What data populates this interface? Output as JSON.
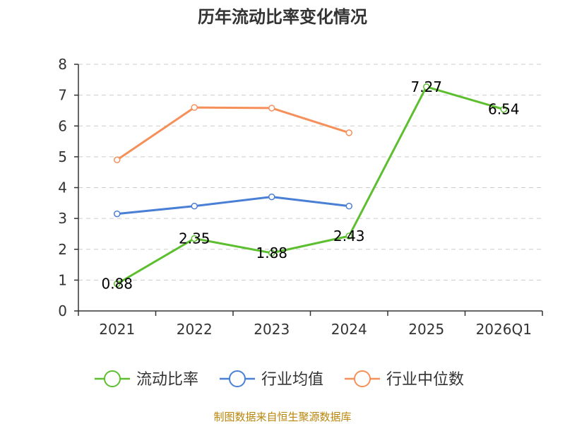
{
  "chart_data": {
    "type": "line",
    "title": "历年流动比率变化情况",
    "categories": [
      "2021",
      "2022",
      "2023",
      "2024",
      "2025",
      "2026Q1"
    ],
    "ylim": [
      0,
      8
    ],
    "yticks": [
      0,
      1,
      2,
      3,
      4,
      5,
      6,
      7,
      8
    ],
    "grid": true,
    "legend_position": "bottom",
    "series": [
      {
        "name": "流动比率",
        "color": "#5dbe2f",
        "values": [
          0.88,
          2.35,
          1.88,
          2.43,
          7.27,
          6.54
        ],
        "labels": [
          "0.88",
          "2.35",
          "1.88",
          "2.43",
          "7.27",
          "6.54"
        ]
      },
      {
        "name": "行业均值",
        "color": "#4a7fd6",
        "values": [
          3.15,
          3.4,
          3.7,
          3.4,
          null,
          null
        ]
      },
      {
        "name": "行业中位数",
        "color": "#f5905a",
        "values": [
          4.9,
          6.6,
          6.58,
          5.78,
          null,
          null
        ]
      }
    ],
    "source": "制图数据来自恒生聚源数据库"
  }
}
